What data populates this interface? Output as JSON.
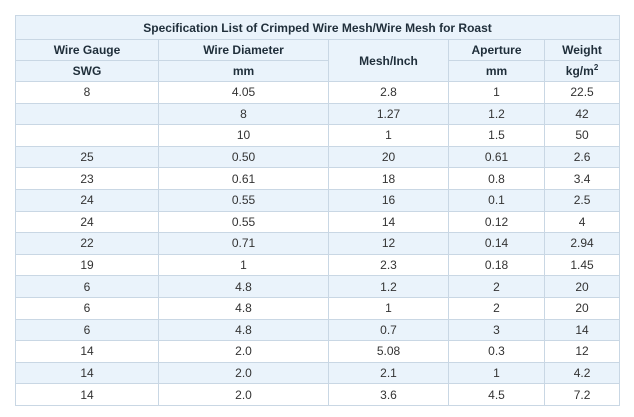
{
  "table": {
    "title": "Specification List of Crimped Wire Mesh/Wire Mesh for Roast",
    "headers": {
      "wire_gauge": "Wire Gauge",
      "wire_gauge_unit": "SWG",
      "wire_diameter": "Wire Diameter",
      "wire_diameter_unit": "mm",
      "mesh": "Mesh/Inch",
      "aperture": "Aperture",
      "aperture_unit": "mm",
      "weight": "Weight",
      "weight_unit": "kg/m",
      "weight_unit_sup": "2"
    },
    "rows": [
      {
        "gauge": "8",
        "diameter": "4.05",
        "mesh": "2.8",
        "aperture": "1",
        "weight": "22.5"
      },
      {
        "gauge": "",
        "diameter": "8",
        "mesh": "1.27",
        "aperture": "1.2",
        "weight": "42"
      },
      {
        "gauge": "",
        "diameter": "10",
        "mesh": "1",
        "aperture": "1.5",
        "weight": "50"
      },
      {
        "gauge": "25",
        "diameter": "0.50",
        "mesh": "20",
        "aperture": "0.61",
        "weight": "2.6"
      },
      {
        "gauge": "23",
        "diameter": "0.61",
        "mesh": "18",
        "aperture": "0.8",
        "weight": "3.4"
      },
      {
        "gauge": "24",
        "diameter": "0.55",
        "mesh": "16",
        "aperture": "0.1",
        "weight": "2.5"
      },
      {
        "gauge": "24",
        "diameter": "0.55",
        "mesh": "14",
        "aperture": "0.12",
        "weight": "4"
      },
      {
        "gauge": "22",
        "diameter": "0.71",
        "mesh": "12",
        "aperture": "0.14",
        "weight": "2.94"
      },
      {
        "gauge": "19",
        "diameter": "1",
        "mesh": "2.3",
        "aperture": "0.18",
        "weight": "1.45"
      },
      {
        "gauge": "6",
        "diameter": "4.8",
        "mesh": "1.2",
        "aperture": "2",
        "weight": "20"
      },
      {
        "gauge": "6",
        "diameter": "4.8",
        "mesh": "1",
        "aperture": "2",
        "weight": "20"
      },
      {
        "gauge": "6",
        "diameter": "4.8",
        "mesh": "0.7",
        "aperture": "3",
        "weight": "14"
      },
      {
        "gauge": "14",
        "diameter": "2.0",
        "mesh": "5.08",
        "aperture": "0.3",
        "weight": "12"
      },
      {
        "gauge": "14",
        "diameter": "2.0",
        "mesh": "2.1",
        "aperture": "1",
        "weight": "4.2"
      },
      {
        "gauge": "14",
        "diameter": "2.0",
        "mesh": "3.6",
        "aperture": "4.5",
        "weight": "7.2"
      }
    ],
    "colors": {
      "header_bg": "#eaf3fb",
      "alt_row_bg": "#eaf3fb",
      "border": "#c9d7e4",
      "text": "#333333"
    }
  }
}
